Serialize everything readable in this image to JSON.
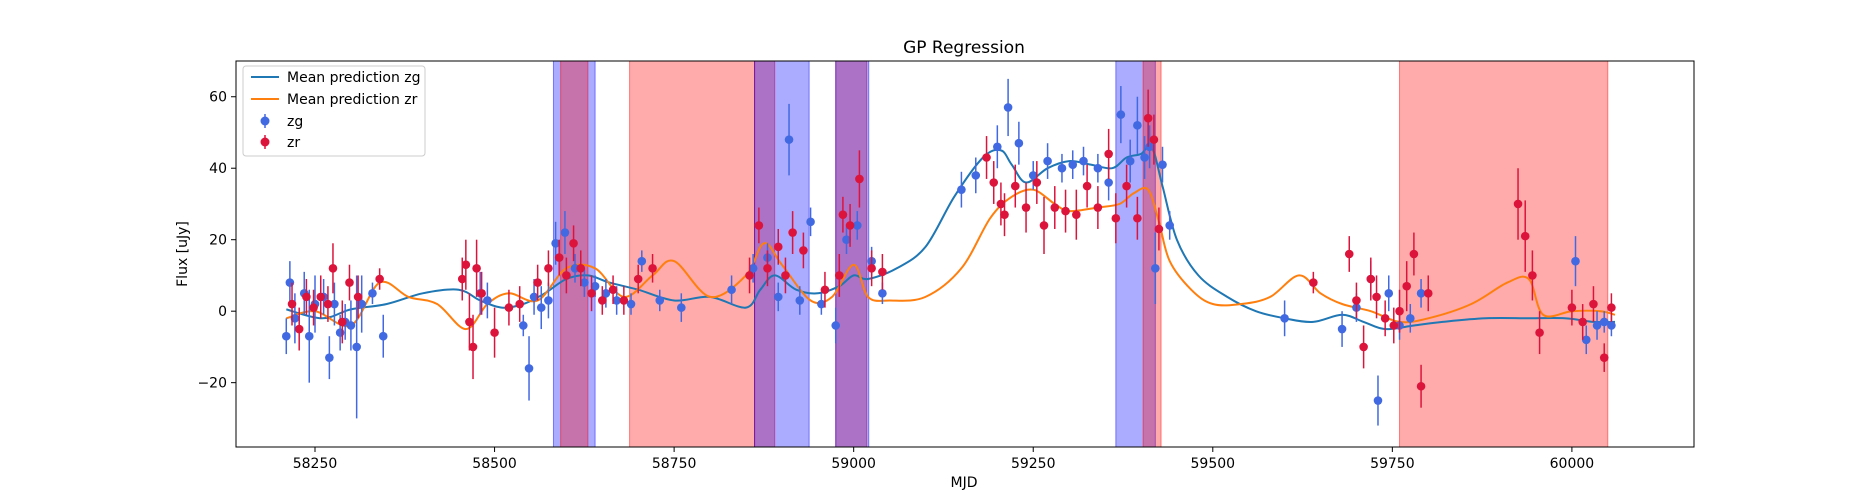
{
  "chart_data": {
    "type": "scatter",
    "title": "GP Regression",
    "xlabel": "MJD",
    "ylabel": "Flux [uJy]",
    "xlim": [
      58140,
      60170
    ],
    "ylim": [
      -38,
      70
    ],
    "xticks": [
      58250,
      58500,
      58750,
      59000,
      59250,
      59500,
      59750,
      60000
    ],
    "yticks": [
      -20,
      0,
      20,
      40,
      60
    ],
    "legend": {
      "position": "top-left",
      "entries": [
        "Mean prediction zg",
        "Mean prediction zr",
        "zg",
        "zr"
      ]
    },
    "shaded_regions": [
      {
        "band": "zg",
        "color": "#0000ff",
        "x0": 58582,
        "x1": 58640
      },
      {
        "band": "zr",
        "color": "#ff0000",
        "x0": 58592,
        "x1": 58630
      },
      {
        "band": "zr",
        "color": "#ff0000",
        "x0": 58688,
        "x1": 58862
      },
      {
        "band": "zr",
        "color": "#ff0000",
        "x0": 58862,
        "x1": 58890
      },
      {
        "band": "zg",
        "color": "#0000ff",
        "x0": 58862,
        "x1": 58938
      },
      {
        "band": "zr",
        "color": "#ff0000",
        "x0": 58975,
        "x1": 59018
      },
      {
        "band": "zg",
        "color": "#0000ff",
        "x0": 58975,
        "x1": 59021
      },
      {
        "band": "zg",
        "color": "#0000ff",
        "x0": 59365,
        "x1": 59420
      },
      {
        "band": "zr",
        "color": "#ff0000",
        "x0": 59403,
        "x1": 59428
      },
      {
        "band": "zr",
        "color": "#ff0000",
        "x0": 59760,
        "x1": 60050
      }
    ],
    "series": [
      {
        "name": "Mean prediction zg",
        "kind": "line",
        "color": "#1f77b4",
        "x": [
          58210,
          58260,
          58300,
          58350,
          58400,
          58450,
          58480,
          58510,
          58540,
          58570,
          58600,
          58630,
          58660,
          58700,
          58750,
          58800,
          58850,
          58870,
          58890,
          58920,
          58950,
          58980,
          59000,
          59020,
          59060,
          59100,
          59140,
          59180,
          59205,
          59220,
          59240,
          59270,
          59300,
          59330,
          59360,
          59380,
          59400,
          59415,
          59430,
          59450,
          59480,
          59520,
          59560,
          59600,
          59640,
          59680,
          59710,
          59740,
          59780,
          59820,
          59880,
          59940,
          59990,
          60030,
          60060
        ],
        "y": [
          0.5,
          -2,
          0.5,
          2,
          5,
          6,
          3,
          1,
          2,
          5,
          9,
          10,
          8,
          6,
          3,
          4,
          1,
          6,
          10,
          6,
          5,
          7,
          10,
          9,
          12,
          18,
          32,
          43,
          45,
          41,
          36,
          40,
          42,
          41,
          40,
          43,
          44,
          46,
          35,
          20,
          10,
          4,
          0,
          -2,
          -3,
          -1,
          -3,
          -5,
          -4,
          -3,
          -2,
          -2,
          -2,
          -3,
          -3
        ]
      },
      {
        "name": "Mean prediction zr",
        "kind": "line",
        "color": "#ff7f0e",
        "x": [
          58210,
          58250,
          58300,
          58340,
          58380,
          58420,
          58460,
          58490,
          58520,
          58560,
          58600,
          58640,
          58680,
          58720,
          58750,
          58800,
          58850,
          58875,
          58900,
          58940,
          58970,
          59000,
          59020,
          59050,
          59100,
          59150,
          59190,
          59220,
          59250,
          59280,
          59300,
          59340,
          59370,
          59390,
          59410,
          59425,
          59440,
          59470,
          59500,
          59540,
          59580,
          59620,
          59650,
          59680,
          59720,
          59760,
          59800,
          59860,
          59910,
          59940,
          59960,
          60000,
          60040,
          60060
        ],
        "y": [
          -2,
          0,
          -4,
          8,
          4,
          2,
          -5,
          2,
          5,
          3,
          12,
          12,
          4,
          10,
          14,
          4,
          10,
          19,
          13,
          3,
          4,
          13,
          4,
          3,
          4,
          12,
          26,
          32,
          34,
          30,
          28,
          29,
          30,
          33,
          34,
          25,
          14,
          6,
          2,
          2,
          4,
          10,
          5,
          2,
          0,
          -3,
          -2,
          2,
          8,
          9,
          -1,
          0,
          0,
          -1
        ]
      },
      {
        "name": "zg",
        "kind": "errorbar",
        "color": "#4169e1",
        "x": [
          58210,
          58215,
          58222,
          58235,
          58242,
          58250,
          58262,
          58270,
          58277,
          58285,
          58292,
          58300,
          58308,
          58315,
          58330,
          58345,
          58480,
          58490,
          58540,
          58548,
          58555,
          58565,
          58575,
          58585,
          58598,
          58612,
          58625,
          58640,
          58655,
          58670,
          58690,
          58705,
          58730,
          58760,
          58830,
          58860,
          58880,
          58895,
          58910,
          58925,
          58940,
          58955,
          58975,
          58990,
          59005,
          59025,
          59040,
          59150,
          59170,
          59200,
          59215,
          59230,
          59250,
          59270,
          59290,
          59305,
          59320,
          59340,
          59355,
          59372,
          59385,
          59395,
          59405,
          59412,
          59420,
          59430,
          59440,
          59600,
          59680,
          59700,
          59720,
          59730,
          59745,
          59760,
          59775,
          59790,
          60005,
          60020,
          60035,
          60045,
          60055
        ],
        "y": [
          -7,
          8,
          -2,
          5,
          -7,
          2,
          4,
          -13,
          2,
          -6,
          -3,
          -4,
          -10,
          2,
          5,
          -7,
          5,
          3,
          -4,
          -16,
          4,
          1,
          3,
          19,
          22,
          12,
          8,
          7,
          5,
          3,
          2,
          14,
          3,
          1,
          6,
          12,
          15,
          4,
          48,
          3,
          25,
          2,
          -4,
          20,
          24,
          14,
          5,
          34,
          38,
          46,
          57,
          47,
          38,
          42,
          40,
          41,
          42,
          40,
          36,
          55,
          42,
          52,
          43,
          46,
          12,
          41,
          24,
          -2,
          -5,
          1,
          9,
          -25,
          5,
          -4,
          -2,
          5,
          14,
          -8,
          -4,
          -3,
          -4
        ],
        "err": [
          5,
          6,
          7,
          6,
          13,
          8,
          5,
          6,
          6,
          5,
          5,
          7,
          20,
          8,
          3,
          6,
          6,
          5,
          3,
          9,
          5,
          6,
          5,
          6,
          6,
          4,
          4,
          3,
          4,
          4,
          3,
          3,
          3,
          4,
          4,
          4,
          4,
          4,
          10,
          4,
          4,
          3,
          5,
          4,
          4,
          4,
          3,
          5,
          5,
          6,
          8,
          6,
          4,
          5,
          4,
          4,
          4,
          4,
          5,
          8,
          6,
          8,
          6,
          6,
          10,
          5,
          4,
          5,
          5,
          4,
          5,
          7,
          5,
          4,
          4,
          4,
          7,
          4,
          4,
          3,
          3
        ]
      },
      {
        "name": "zr",
        "kind": "errorbar",
        "color": "#dc143c",
        "x": [
          58218,
          58228,
          58238,
          58248,
          58258,
          58268,
          58275,
          58288,
          58298,
          58310,
          58340,
          58455,
          58460,
          58465,
          58470,
          58475,
          58482,
          58500,
          58520,
          58535,
          58560,
          58575,
          58590,
          58600,
          58610,
          58620,
          58635,
          58650,
          58665,
          58680,
          58700,
          58720,
          58855,
          58868,
          58880,
          58895,
          58905,
          58915,
          58930,
          58960,
          58980,
          58985,
          58995,
          59008,
          59025,
          59040,
          59185,
          59195,
          59205,
          59210,
          59225,
          59240,
          59255,
          59265,
          59280,
          59295,
          59310,
          59325,
          59340,
          59355,
          59365,
          59380,
          59395,
          59410,
          59418,
          59425,
          59640,
          59690,
          59700,
          59710,
          59720,
          59728,
          59740,
          59752,
          59760,
          59770,
          59780,
          59790,
          59800,
          59925,
          59935,
          59945,
          59955,
          60000,
          60015,
          60030,
          60045,
          60055
        ],
        "y": [
          2,
          -5,
          4,
          1,
          4,
          2,
          12,
          -3,
          8,
          4,
          9,
          9,
          13,
          -3,
          -10,
          12,
          5,
          -6,
          1,
          2,
          8,
          12,
          15,
          10,
          19,
          12,
          5,
          3,
          6,
          3,
          9,
          12,
          10,
          24,
          12,
          18,
          10,
          22,
          17,
          6,
          10,
          27,
          24,
          37,
          12,
          11,
          43,
          36,
          30,
          27,
          35,
          29,
          36,
          24,
          29,
          28,
          27,
          35,
          29,
          44,
          26,
          35,
          26,
          54,
          48,
          23,
          8,
          16,
          3,
          -10,
          9,
          4,
          -2,
          -4,
          0,
          7,
          16,
          -21,
          5,
          30,
          21,
          10,
          -6,
          1,
          -3,
          2,
          -13,
          1
        ],
        "err": [
          6,
          6,
          5,
          5,
          6,
          5,
          7,
          6,
          5,
          6,
          3,
          6,
          7,
          8,
          9,
          8,
          6,
          7,
          5,
          5,
          5,
          5,
          5,
          5,
          5,
          5,
          5,
          4,
          4,
          4,
          4,
          4,
          5,
          5,
          5,
          5,
          5,
          6,
          5,
          5,
          6,
          5,
          6,
          8,
          5,
          5,
          6,
          6,
          6,
          6,
          6,
          7,
          6,
          8,
          6,
          6,
          7,
          6,
          6,
          7,
          7,
          6,
          6,
          8,
          7,
          6,
          3,
          5,
          5,
          6,
          6,
          6,
          5,
          5,
          6,
          7,
          6,
          6,
          5,
          10,
          10,
          7,
          6,
          5,
          5,
          5,
          4,
          4
        ]
      }
    ]
  }
}
